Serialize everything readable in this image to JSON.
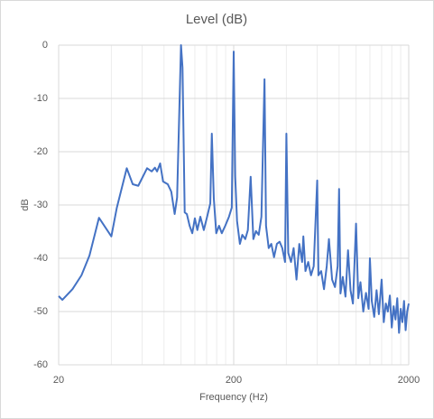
{
  "chart_data": {
    "type": "line",
    "title": "Level (dB)",
    "x_label": "Frequency (Hz)",
    "y_label": "dB",
    "log_x": true,
    "grid": true,
    "minor_grid": true,
    "xlim": [
      20,
      2000
    ],
    "xticks": [
      20,
      200,
      2000
    ],
    "ylim": [
      -60,
      0
    ],
    "yticks": [
      -60,
      -50,
      -40,
      -30,
      -20,
      -10,
      0
    ],
    "x": [
      20,
      21,
      24,
      27,
      30,
      34,
      40,
      43,
      49,
      53,
      57,
      64,
      68,
      71,
      73,
      76,
      79,
      84,
      88,
      92,
      95,
      100,
      102,
      105,
      108,
      112,
      116,
      120,
      124,
      129,
      135,
      141,
      147,
      150,
      154,
      159,
      165,
      171,
      179,
      188,
      195,
      200,
      204,
      209,
      217,
      224,
      233,
      241,
      250,
      259,
      268,
      278,
      288,
      300,
      306,
      317,
      328,
      340,
      353,
      366,
      379,
      393,
      400,
      410,
      425,
      440,
      457,
      474,
      492,
      500,
      514,
      533,
      553,
      573,
      600,
      610,
      632,
      656,
      680,
      700,
      730,
      758,
      785,
      800,
      815,
      840,
      870,
      900,
      930,
      960,
      1000,
      1030,
      1060,
      1100,
      1140,
      1180,
      1200,
      1230,
      1270,
      1310,
      1350,
      1400,
      1440,
      1480,
      1520,
      1560,
      1600,
      1640,
      1680,
      1720,
      1760,
      1800,
      1840,
      1880,
      1920,
      1960,
      2000
    ],
    "series": [
      {
        "name": "Level (dB)",
        "color": "#4472c4",
        "values": [
          -47.1,
          -47.8,
          -45.8,
          -43.2,
          -39.5,
          -32.4,
          -35.9,
          -30.5,
          -23.1,
          -26.1,
          -26.4,
          -23.1,
          -23.7,
          -23,
          -23.7,
          -22.2,
          -25.6,
          -26.1,
          -27.5,
          -31.7,
          -28.6,
          0,
          -4.2,
          -31.4,
          -31.7,
          -33.9,
          -35.3,
          -32.5,
          -34.7,
          -32.2,
          -34.7,
          -32.2,
          -29.7,
          -16.6,
          -28.8,
          -35.3,
          -33.9,
          -35.3,
          -33.9,
          -32.2,
          -30.5,
          -1.2,
          -24.6,
          -33,
          -37.3,
          -35.6,
          -36.4,
          -34.7,
          -24.7,
          -36.4,
          -34.9,
          -35.6,
          -32.2,
          -6.4,
          -33.9,
          -38.1,
          -37.3,
          -39.8,
          -37.3,
          -36.9,
          -38.1,
          -40.7,
          -16.6,
          -39,
          -40.7,
          -38.1,
          -44,
          -37.3,
          -40.7,
          -35.9,
          -42.4,
          -40.7,
          -43.2,
          -41.5,
          -25.4,
          -43.2,
          -42.4,
          -45.8,
          -41.5,
          -36.4,
          -44,
          -45.4,
          -41.5,
          -27,
          -46.6,
          -43.5,
          -47.2,
          -38.5,
          -46,
          -48.5,
          -33.5,
          -47.5,
          -44.5,
          -50,
          -46.5,
          -49.5,
          -40,
          -48,
          -51,
          -46,
          -50.5,
          -44,
          -52,
          -48.5,
          -50,
          -47,
          -53,
          -49,
          -51.5,
          -47.5,
          -54,
          -49.5,
          -52,
          -48,
          -53.5,
          -50,
          -48.5
        ]
      }
    ]
  }
}
